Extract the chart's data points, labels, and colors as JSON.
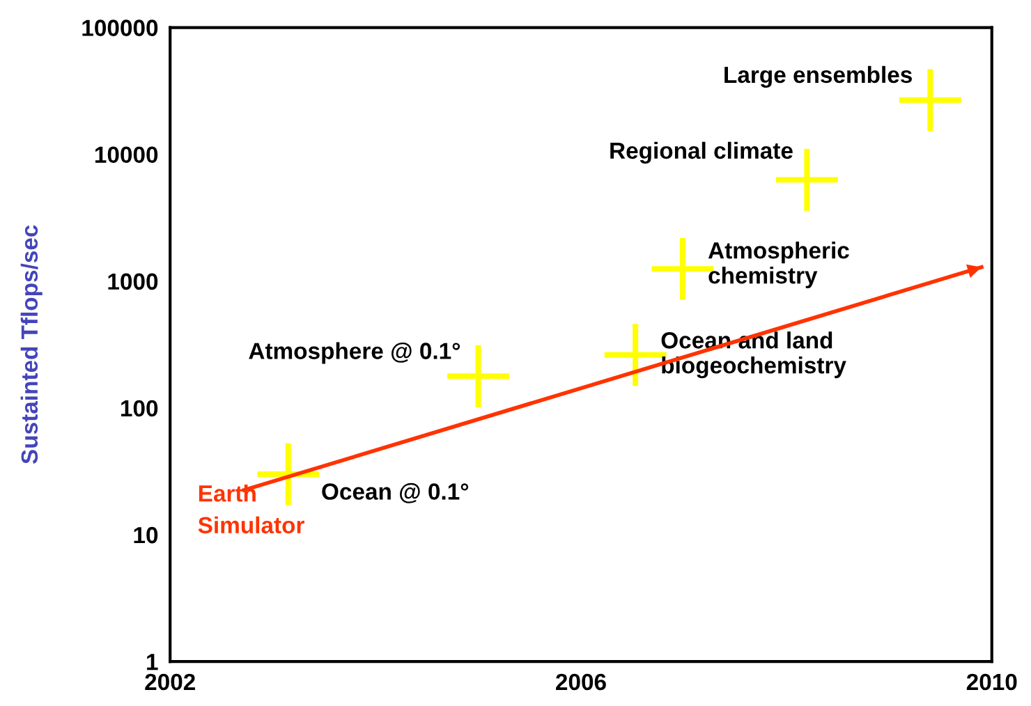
{
  "chart_data": {
    "type": "scatter",
    "ylabel": "Sustainted Tflops/sec",
    "log": "y",
    "grid": false,
    "xlim": [
      2002,
      2010
    ],
    "xticks": [
      2002,
      2006,
      2010
    ],
    "ylim": [
      1,
      100000
    ],
    "yticks": [
      1,
      10,
      100,
      1000,
      10000,
      100000
    ],
    "series": [
      {
        "color": "#ffff00",
        "marker": "cross",
        "x": [
          2003.15,
          2005.0,
          2006.53,
          2006.99,
          2008.2,
          2009.4
        ],
        "values": [
          30,
          178,
          262,
          1250,
          6300,
          26800
        ]
      },
      {
        "type": "line",
        "name": "Earth\nSimulator",
        "color": "#ff3300",
        "line_style": "solid",
        "x": [
          2002.72,
          2009.9
        ],
        "values": [
          22.5,
          1290
        ]
      }
    ],
    "annotations": [
      {
        "text": "Ocean @ 0.1°",
        "x": 2003.15,
        "y": 30
      },
      {
        "text": "Atmosphere @ 0.1°",
        "x": 2005.0,
        "y": 178
      },
      {
        "text": "Ocean and land\nbiogeochemistry",
        "x": 2006.53,
        "y": 262
      },
      {
        "text": "Atmospheric\nchemistry",
        "x": 2006.99,
        "y": 1250
      },
      {
        "text": "Regional climate",
        "x": 2008.2,
        "y": 6300
      },
      {
        "text": "Large ensembles",
        "x": 2009.4,
        "y": 26800
      }
    ]
  }
}
